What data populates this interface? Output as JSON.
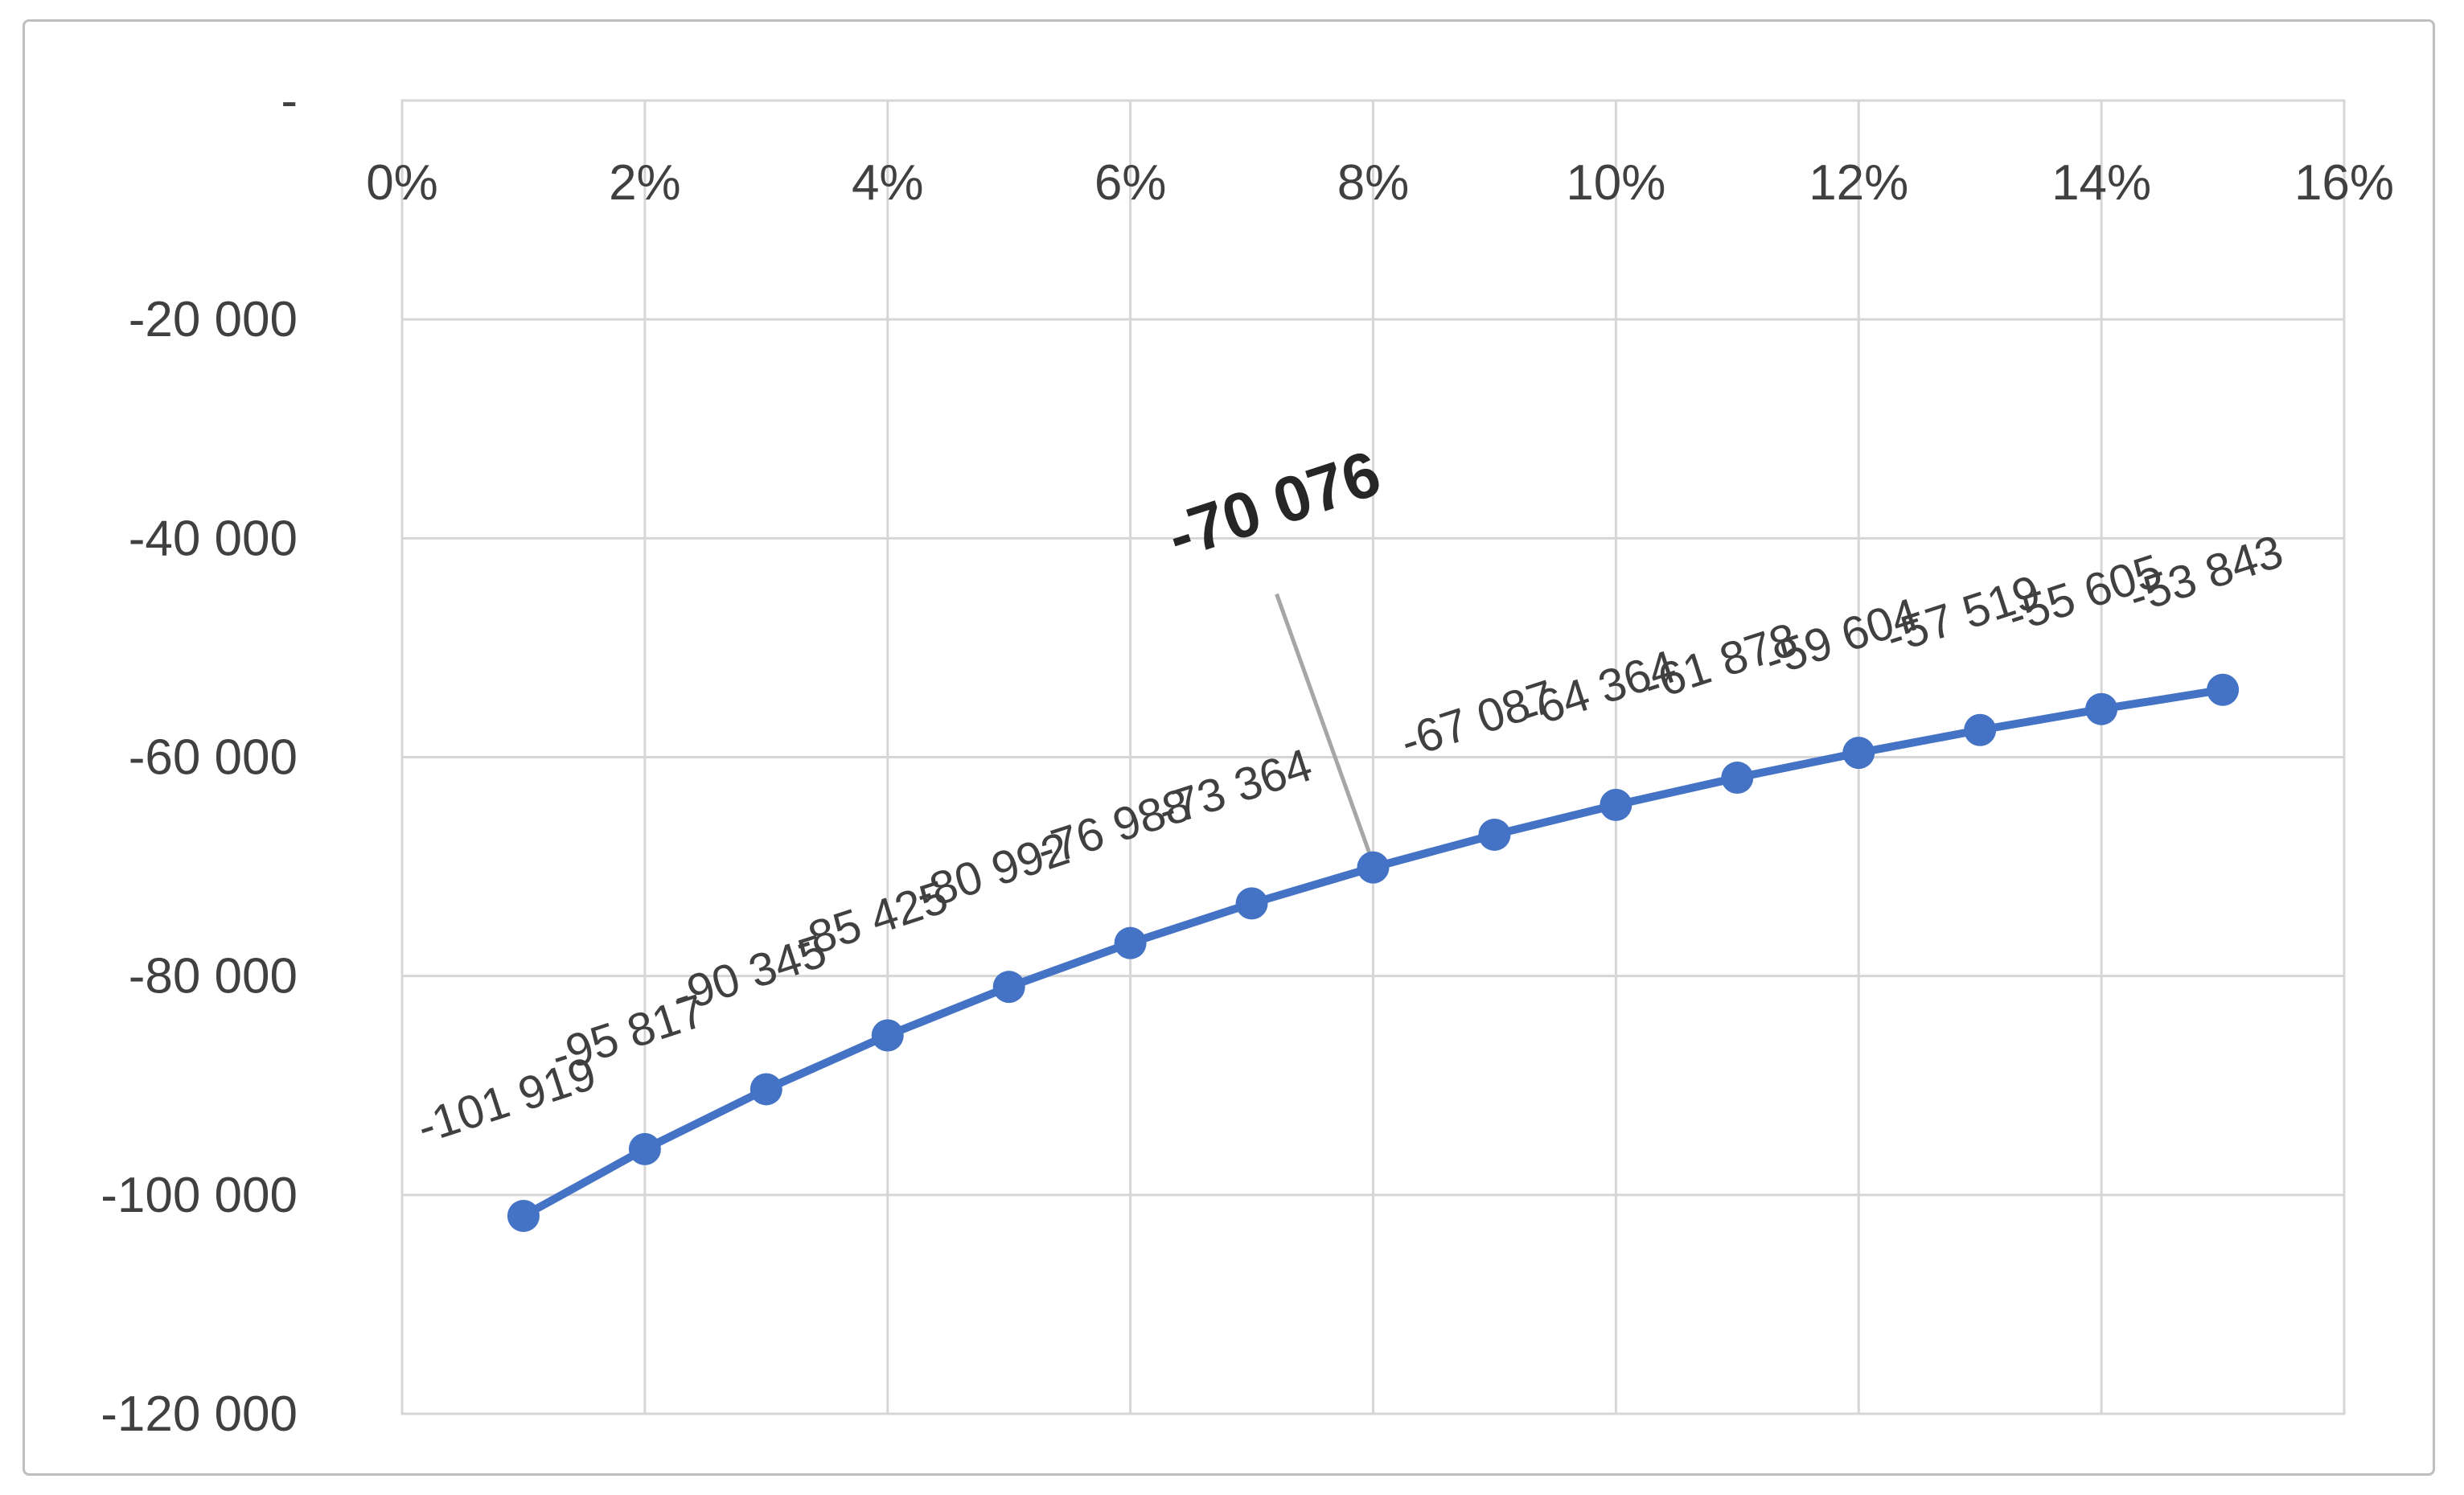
{
  "chart_data": {
    "type": "line",
    "title": "",
    "xlabel": "",
    "ylabel": "",
    "x_percent": [
      1,
      2,
      3,
      4,
      5,
      6,
      7,
      8,
      9,
      10,
      11,
      12,
      13,
      14,
      15
    ],
    "values": [
      -101919,
      -95817,
      -90345,
      -85425,
      -80992,
      -76988,
      -73364,
      -70076,
      -67087,
      -64364,
      -61878,
      -59604,
      -57519,
      -55605,
      -53843
    ],
    "point_labels": [
      "-101 919",
      "-95 817",
      "-90 345",
      "-85 425",
      "-80 992",
      "-76 988",
      "-73 364",
      "-70 076",
      "-67 087",
      "-64 364",
      "-61 878",
      "-59 604",
      "-57 519",
      "-55 605",
      "-53 843"
    ],
    "highlight": {
      "index": 7,
      "label": "-70 076"
    },
    "x_axis": {
      "min_percent": 0,
      "max_percent": 16,
      "tick_labels": [
        "0%",
        "2%",
        "4%",
        "6%",
        "8%",
        "10%",
        "12%",
        "14%",
        "16%"
      ]
    },
    "y_axis": {
      "min": -120000,
      "max": 0,
      "tick_labels": [
        "-",
        "-20 000",
        "-40 000",
        "-60 000",
        "-80 000",
        "-100 000",
        "-120 000"
      ]
    },
    "legend": "none",
    "grid": true,
    "colors": {
      "line": "#4472C4",
      "marker": "#4472C4",
      "grid": "#D6D6D6",
      "plot_border": "#D6D6D6",
      "axis_text": "#404040",
      "label_text": "#404040",
      "highlight_text": "#262626",
      "leader": "#A6A6A6",
      "frame_border": "#BFBFBF"
    }
  }
}
